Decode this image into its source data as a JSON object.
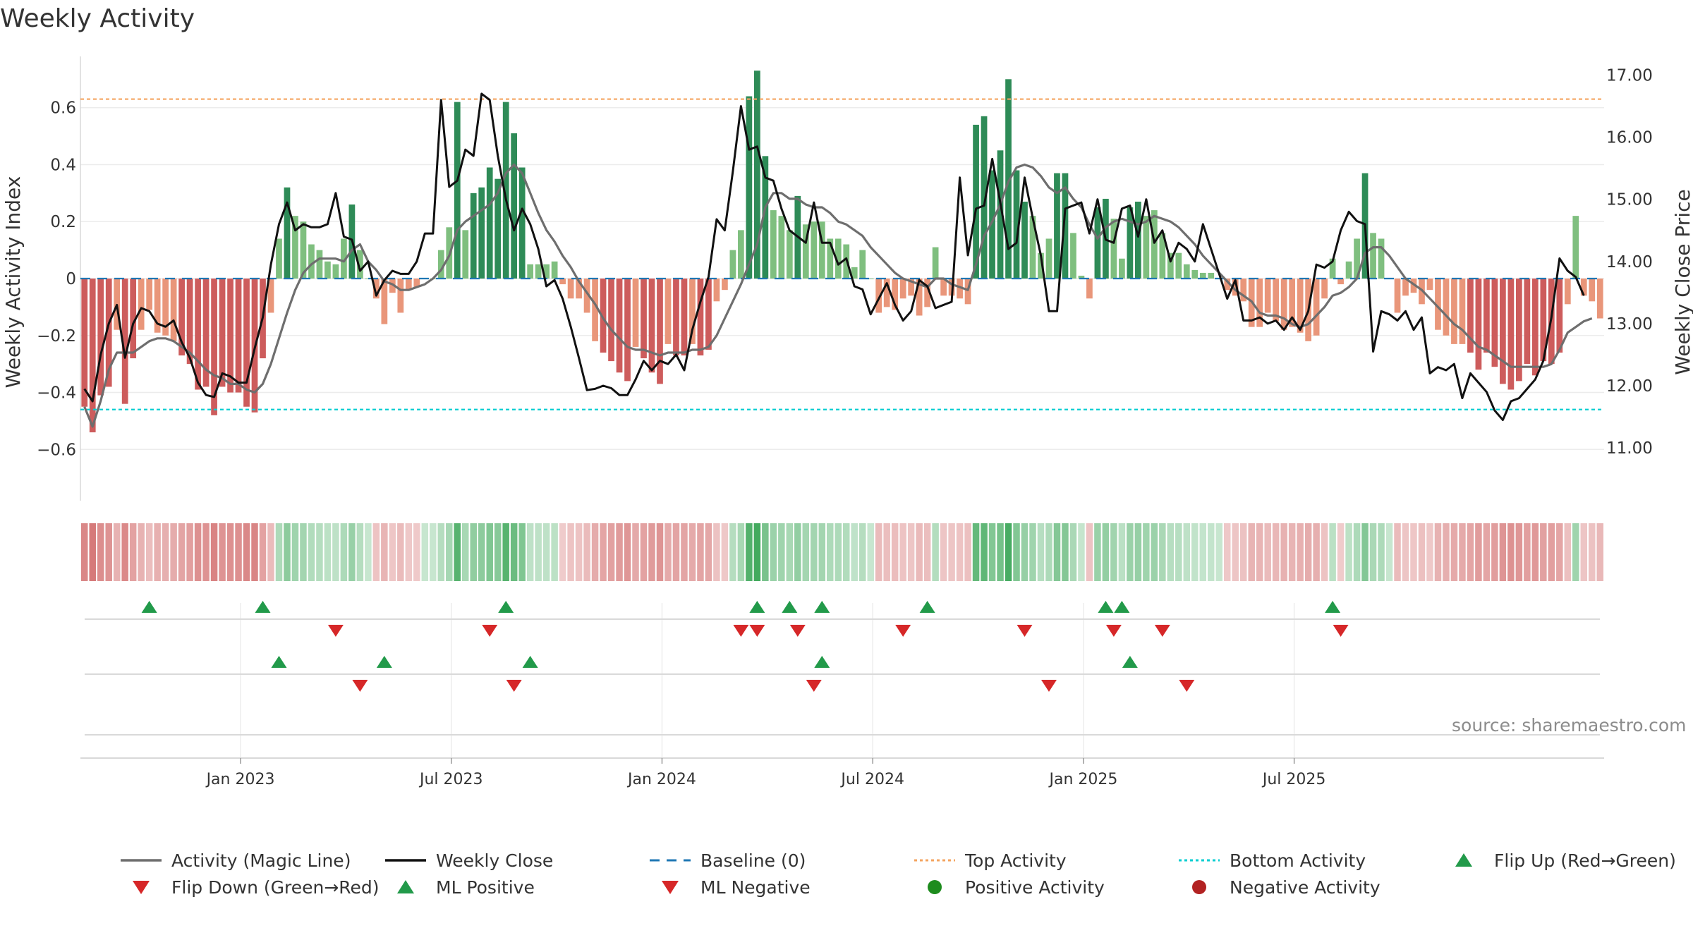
{
  "title": "Weekly Activity",
  "source": "source: sharemaestro.com",
  "colors": {
    "pos_strong": "#2e8b57",
    "pos_light": "#7fbf7f",
    "neg_strong": "#cd5c5c",
    "neg_light": "#e9967a",
    "magic_line": "#6e6e6e",
    "close_line": "#111111",
    "baseline": "#1f77b4",
    "top": "#f4a460",
    "bottom": "#00ced1",
    "tri_up": "#229a4a",
    "tri_down": "#d62728"
  },
  "chart_data": {
    "type": "bar",
    "start_year": 2022.62,
    "weeks_per_year": 52,
    "title": "Weekly Activity",
    "ylabel": "Weekly Activity Index",
    "y2label": "Weekly Close Price",
    "ylim": [
      -0.78,
      0.78
    ],
    "y2lim": [
      10.15,
      17.3
    ],
    "yticks": [
      "−0.6",
      "−0.4",
      "−0.2",
      "0",
      "0.2",
      "0.4",
      "0.6"
    ],
    "yticks_values": [
      -0.6,
      -0.4,
      -0.2,
      0,
      0.2,
      0.4,
      0.6
    ],
    "y2ticks": [
      "11.00",
      "12.00",
      "13.00",
      "14.00",
      "15.00",
      "16.00",
      "17.00"
    ],
    "y2ticks_values": [
      11,
      12,
      13,
      14,
      15,
      16,
      17
    ],
    "xticks": [
      "Jan 2023",
      "Jul 2023",
      "Jan 2024",
      "Jul 2024",
      "Jan 2025",
      "Jul 2025"
    ],
    "xticks_values": [
      2023.0,
      2023.5,
      2024.0,
      2024.5,
      2025.0,
      2025.5
    ],
    "top_activity": 0.63,
    "bottom_activity": -0.46,
    "baseline": 0,
    "activity": [
      -0.45,
      -0.54,
      -0.41,
      -0.38,
      -0.18,
      -0.44,
      -0.28,
      -0.18,
      -0.11,
      -0.19,
      -0.2,
      -0.22,
      -0.27,
      -0.3,
      -0.39,
      -0.38,
      -0.48,
      -0.38,
      -0.4,
      -0.4,
      -0.45,
      -0.47,
      -0.28,
      -0.12,
      0.14,
      0.32,
      0.22,
      0.2,
      0.12,
      0.1,
      0.06,
      0.05,
      0.14,
      0.26,
      0.1,
      0.0,
      -0.07,
      -0.16,
      -0.05,
      -0.12,
      -0.04,
      -0.03,
      0.0,
      0.0,
      0.1,
      0.18,
      0.62,
      0.17,
      0.3,
      0.32,
      0.39,
      0.35,
      0.62,
      0.51,
      0.39,
      0.05,
      0.05,
      0.05,
      0.06,
      -0.02,
      -0.07,
      -0.07,
      -0.12,
      -0.22,
      -0.26,
      -0.29,
      -0.33,
      -0.36,
      -0.24,
      -0.28,
      -0.33,
      -0.37,
      -0.23,
      -0.27,
      -0.27,
      -0.23,
      -0.27,
      -0.25,
      -0.08,
      -0.04,
      0.1,
      0.17,
      0.64,
      0.73,
      0.43,
      0.24,
      0.22,
      0.17,
      0.29,
      0.19,
      0.2,
      0.2,
      0.14,
      0.14,
      0.12,
      0.04,
      0.1,
      0.0,
      -0.12,
      -0.1,
      -0.11,
      -0.07,
      -0.06,
      -0.13,
      -0.1,
      0.11,
      -0.06,
      -0.06,
      -0.07,
      -0.09,
      0.54,
      0.57,
      0.38,
      0.45,
      0.7,
      0.38,
      0.27,
      0.22,
      0.09,
      0.14,
      0.37,
      0.37,
      0.16,
      0.01,
      -0.07,
      0.25,
      0.28,
      0.21,
      0.07,
      0.25,
      0.27,
      0.22,
      0.24,
      0.16,
      0.09,
      0.09,
      0.05,
      0.03,
      0.02,
      0.02,
      0.0,
      -0.04,
      -0.06,
      -0.08,
      -0.17,
      -0.17,
      -0.12,
      -0.15,
      -0.18,
      -0.17,
      -0.19,
      -0.22,
      -0.2,
      -0.07,
      0.07,
      -0.02,
      0.06,
      0.14,
      0.37,
      0.16,
      0.14,
      0.0,
      -0.12,
      -0.06,
      -0.05,
      -0.09,
      -0.04,
      -0.18,
      -0.2,
      -0.23,
      -0.23,
      -0.26,
      -0.32,
      -0.26,
      -0.31,
      -0.37,
      -0.39,
      -0.36,
      -0.3,
      -0.34,
      -0.29,
      -0.3,
      -0.26,
      -0.09,
      0.22,
      -0.06,
      -0.08,
      -0.14
    ],
    "magic_line": [
      -0.45,
      -0.52,
      -0.43,
      -0.32,
      -0.26,
      -0.26,
      -0.26,
      -0.24,
      -0.22,
      -0.21,
      -0.21,
      -0.22,
      -0.24,
      -0.26,
      -0.29,
      -0.32,
      -0.34,
      -0.35,
      -0.37,
      -0.37,
      -0.39,
      -0.4,
      -0.37,
      -0.3,
      -0.21,
      -0.12,
      -0.04,
      0.02,
      0.05,
      0.07,
      0.07,
      0.07,
      0.06,
      0.1,
      0.12,
      0.06,
      0.03,
      -0.01,
      -0.02,
      -0.04,
      -0.04,
      -0.03,
      -0.02,
      0.0,
      0.03,
      0.08,
      0.17,
      0.2,
      0.22,
      0.24,
      0.26,
      0.3,
      0.37,
      0.4,
      0.37,
      0.3,
      0.23,
      0.17,
      0.13,
      0.08,
      0.04,
      -0.01,
      -0.05,
      -0.09,
      -0.14,
      -0.18,
      -0.21,
      -0.24,
      -0.25,
      -0.25,
      -0.26,
      -0.27,
      -0.26,
      -0.26,
      -0.26,
      -0.25,
      -0.25,
      -0.24,
      -0.2,
      -0.14,
      -0.08,
      -0.02,
      0.05,
      0.12,
      0.25,
      0.3,
      0.3,
      0.28,
      0.28,
      0.26,
      0.25,
      0.25,
      0.23,
      0.2,
      0.19,
      0.17,
      0.15,
      0.11,
      0.08,
      0.05,
      0.02,
      0.0,
      -0.01,
      -0.02,
      -0.03,
      0.0,
      0.0,
      -0.02,
      -0.03,
      -0.04,
      0.05,
      0.15,
      0.2,
      0.26,
      0.34,
      0.39,
      0.4,
      0.39,
      0.36,
      0.32,
      0.3,
      0.32,
      0.28,
      0.25,
      0.19,
      0.14,
      0.18,
      0.2,
      0.21,
      0.2,
      0.19,
      0.2,
      0.22,
      0.21,
      0.2,
      0.18,
      0.15,
      0.12,
      0.08,
      0.05,
      0.02,
      -0.01,
      -0.04,
      -0.06,
      -0.08,
      -0.12,
      -0.13,
      -0.13,
      -0.14,
      -0.16,
      -0.17,
      -0.16,
      -0.13,
      -0.1,
      -0.06,
      -0.05,
      -0.03,
      0.0,
      0.09,
      0.11,
      0.11,
      0.08,
      0.04,
      0.0,
      -0.02,
      -0.04,
      -0.07,
      -0.1,
      -0.13,
      -0.16,
      -0.18,
      -0.21,
      -0.24,
      -0.25,
      -0.27,
      -0.29,
      -0.31,
      -0.31,
      -0.31,
      -0.31,
      -0.31,
      -0.3,
      -0.25,
      -0.19,
      -0.17,
      -0.15,
      -0.14
    ],
    "close": [
      11.95,
      11.75,
      12.5,
      13.0,
      13.3,
      12.45,
      13.0,
      13.25,
      13.2,
      13.0,
      12.95,
      13.05,
      12.7,
      12.45,
      12.05,
      11.85,
      11.82,
      12.2,
      12.15,
      12.05,
      12.05,
      12.6,
      13.1,
      13.95,
      14.6,
      14.95,
      14.5,
      14.6,
      14.55,
      14.55,
      14.6,
      15.1,
      14.4,
      14.35,
      13.85,
      14.0,
      13.45,
      13.7,
      13.85,
      13.8,
      13.8,
      14.0,
      14.45,
      14.45,
      16.6,
      15.2,
      15.3,
      15.8,
      15.7,
      16.7,
      16.6,
      15.7,
      15.0,
      14.5,
      14.85,
      14.6,
      14.2,
      13.6,
      13.7,
      13.4,
      12.95,
      12.45,
      11.93,
      11.95,
      12.0,
      11.96,
      11.85,
      11.85,
      12.1,
      12.4,
      12.25,
      12.4,
      12.35,
      12.5,
      12.25,
      12.9,
      13.35,
      13.75,
      14.68,
      14.5,
      15.45,
      16.5,
      15.8,
      15.85,
      15.35,
      15.3,
      14.85,
      14.5,
      14.4,
      14.3,
      14.95,
      14.3,
      14.3,
      13.95,
      14.05,
      13.6,
      13.55,
      13.15,
      13.4,
      13.65,
      13.3,
      13.05,
      13.2,
      13.7,
      13.6,
      13.25,
      13.3,
      13.35,
      15.35,
      14.1,
      14.85,
      14.9,
      15.65,
      14.95,
      14.2,
      14.3,
      15.35,
      14.7,
      14.1,
      13.2,
      13.2,
      14.85,
      14.9,
      14.95,
      14.45,
      15.0,
      14.35,
      14.3,
      14.85,
      14.9,
      14.4,
      15.0,
      14.3,
      14.5,
      14.0,
      14.3,
      14.2,
      14.0,
      14.6,
      14.2,
      13.8,
      13.4,
      13.7,
      13.05,
      13.05,
      13.1,
      13.0,
      13.05,
      12.9,
      13.1,
      12.9,
      13.2,
      13.95,
      13.9,
      14.0,
      14.5,
      14.8,
      14.65,
      14.6,
      12.55,
      13.2,
      13.15,
      13.05,
      13.2,
      12.9,
      13.1,
      12.2,
      12.3,
      12.25,
      12.35,
      11.8,
      12.2,
      12.05,
      11.9,
      11.6,
      11.45,
      11.75,
      11.8,
      11.95,
      12.1,
      12.4,
      13.1,
      14.05,
      13.85,
      13.75,
      13.45
    ],
    "heat_strip": "weekly activity intensity (color encodes activity value)",
    "flip_up": [
      8,
      22,
      52,
      83,
      87,
      91,
      104,
      126,
      128,
      154
    ],
    "flip_down": [
      31,
      50,
      81,
      83,
      88,
      101,
      116,
      127,
      133,
      155
    ],
    "ml_positive": [
      24,
      37,
      55,
      91,
      129
    ],
    "ml_negative": [
      34,
      53,
      90,
      119,
      136
    ]
  },
  "legend": [
    {
      "label": "Activity (Magic Line)",
      "symbol": "solid-gray"
    },
    {
      "label": "Weekly Close",
      "symbol": "solid-black"
    },
    {
      "label": "Baseline (0)",
      "symbol": "dash-blue"
    },
    {
      "label": "Top Activity",
      "symbol": "dot-orange"
    },
    {
      "label": "Bottom Activity",
      "symbol": "dot-cyan"
    },
    {
      "label": "Flip Up (Red→Green)",
      "symbol": "tri-up"
    },
    {
      "label": "Flip Down (Green→Red)",
      "symbol": "tri-down"
    },
    {
      "label": "ML Positive",
      "symbol": "tri-up"
    },
    {
      "label": "ML Negative",
      "symbol": "tri-down"
    },
    {
      "label": "Positive Activity",
      "symbol": "dot-green"
    },
    {
      "label": "Negative Activity",
      "symbol": "dot-red"
    }
  ]
}
